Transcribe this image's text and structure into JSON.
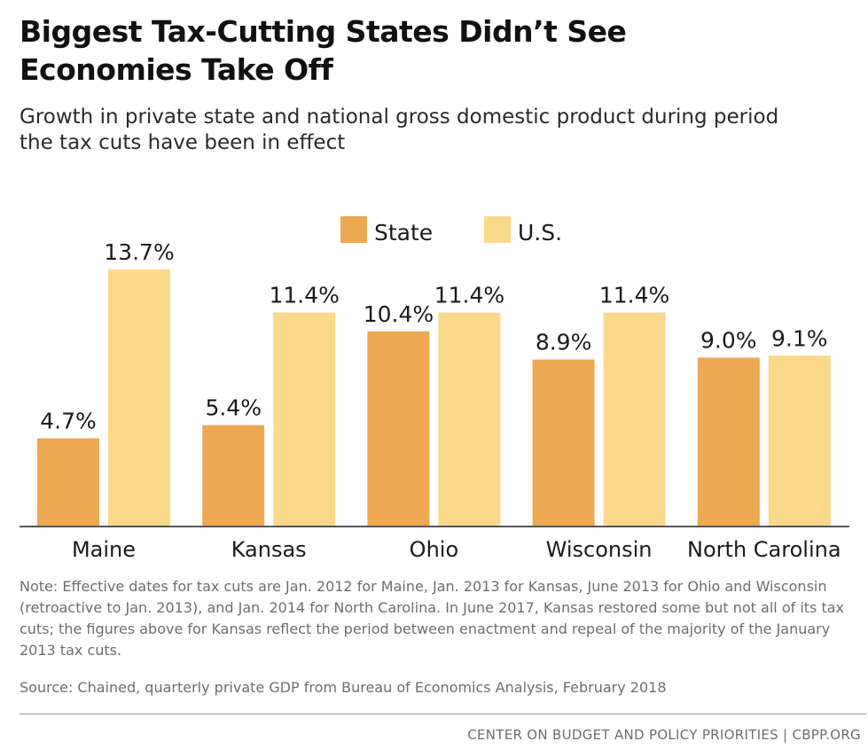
{
  "header": {
    "title_line1": "Biggest Tax-Cutting States Didn’t See",
    "title_line2": "Economies Take Off",
    "subtitle_line1": "Growth in private state and national gross domestic product during period",
    "subtitle_line2": "the tax cuts have been in effect"
  },
  "chart_data": {
    "type": "bar",
    "categories": [
      "Maine",
      "Kansas",
      "Ohio",
      "Wisconsin",
      "North Carolina"
    ],
    "series": [
      {
        "name": "State",
        "color": "#eda851",
        "values": [
          4.7,
          5.4,
          10.4,
          8.9,
          9.0
        ],
        "labels": [
          "4.7%",
          "5.4%",
          "10.4%",
          "8.9%",
          "9.0%"
        ]
      },
      {
        "name": "U.S.",
        "color": "#fcd88a",
        "values": [
          13.7,
          11.4,
          11.4,
          11.4,
          9.1
        ],
        "labels": [
          "13.7%",
          "11.4%",
          "11.4%",
          "11.4%",
          "9.1%"
        ]
      }
    ],
    "ylim": [
      0,
      14.5
    ],
    "grid": false,
    "legend": "top-center",
    "axis_color": "#555555"
  },
  "footer": {
    "note": "Note: Effective dates for tax cuts are Jan. 2012 for Maine, Jan. 2013 for Kansas, June 2013 for Ohio and Wisconsin (retroactive to Jan. 2013), and Jan. 2014 for North Carolina. In June 2017, Kansas restored some but not all of its tax cuts; the figures above for Kansas reflect the period between enactment and repeal of the majority of the January 2013 tax cuts.",
    "source": "Source: Chained, quarterly private GDP from Bureau of Economics Analysis, February 2018",
    "credit": "CENTER ON BUDGET AND POLICY PRIORITIES | CBPP.ORG"
  }
}
